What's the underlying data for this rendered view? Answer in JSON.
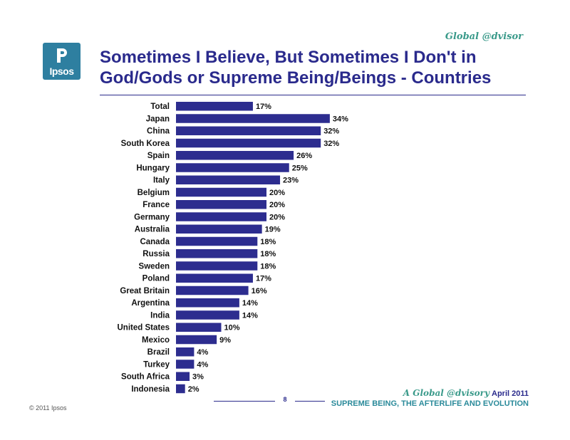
{
  "header": {
    "brand_tag": "Global @dvisor",
    "logo_text": "Ipsos",
    "title_line1": "Sometimes I Believe, But Sometimes I Don't in",
    "title_line2": "God/Gods or Supreme Being/Beings - Countries"
  },
  "colors": {
    "bar": "#2d2d8f",
    "title": "#2a2a8c",
    "brand_teal": "#3a9a8a",
    "logo": "#2e7fa0"
  },
  "chart_data": {
    "type": "bar",
    "orientation": "horizontal",
    "title": "Sometimes I Believe, But Sometimes I Don't in God/Gods or Supreme Being/Beings - Countries",
    "xlabel": "",
    "ylabel": "",
    "unit": "%",
    "grid": false,
    "categories": [
      "Total",
      "Japan",
      "China",
      "South Korea",
      "Spain",
      "Hungary",
      "Italy",
      "Belgium",
      "France",
      "Germany",
      "Australia",
      "Canada",
      "Russia",
      "Sweden",
      "Poland",
      "Great Britain",
      "Argentina",
      "India",
      "United States",
      "Mexico",
      "Brazil",
      "Turkey",
      "South Africa",
      "Indonesia"
    ],
    "values": [
      17,
      34,
      32,
      32,
      26,
      25,
      23,
      20,
      20,
      20,
      19,
      18,
      18,
      18,
      17,
      16,
      14,
      14,
      10,
      9,
      4,
      4,
      3,
      2
    ],
    "data_labels": [
      "17%",
      "34%",
      "32%",
      "32%",
      "26%",
      "25%",
      "23%",
      "20%",
      "20%",
      "20%",
      "19%",
      "18%",
      "18%",
      "18%",
      "17%",
      "16%",
      "14%",
      "14%",
      "10%",
      "9%",
      "4%",
      "4%",
      "3%",
      "2%"
    ]
  },
  "footer": {
    "page_number": "8",
    "report_brand": "A Global @dvisory",
    "report_date": "April 2011",
    "report_subtitle": "SUPREME BEING, THE AFTERLIFE AND EVOLUTION",
    "copyright": "© 2011 Ipsos"
  }
}
